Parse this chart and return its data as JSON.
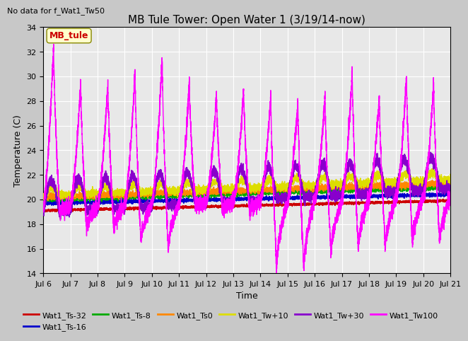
{
  "title": "MB Tule Tower: Open Water 1 (3/19/14-now)",
  "no_data_text": "No data for f_Wat1_Tw50",
  "xlabel": "Time",
  "ylabel": "Temperature (C)",
  "ylim": [
    14,
    34
  ],
  "x_tick_labels": [
    "Jul 6",
    "Jul 7",
    "Jul 8",
    "Jul 9",
    "Jul 10",
    "Jul 11",
    "Jul 12",
    "Jul 13",
    "Jul 14",
    "Jul 15",
    "Jul 16",
    "Jul 17",
    "Jul 18",
    "Jul 19",
    "Jul 20",
    "Jul 21"
  ],
  "legend_box_label": "MB_tule",
  "fig_bg_color": "#c8c8c8",
  "plot_bg_color": "#e8e8e8",
  "series_colors": {
    "Ts32": "#cc0000",
    "Ts16": "#0000cc",
    "Ts8": "#00aa00",
    "Ts0": "#ff8800",
    "Tw10": "#dddd00",
    "Tw30": "#8800cc",
    "Tw100": "#ff00ff"
  },
  "legend_labels": [
    "Wat1_Ts-32",
    "Wat1_Ts-16",
    "Wat1_Ts-8",
    "Wat1_Ts0",
    "Wat1_Tw+10",
    "Wat1_Tw+30",
    "Wat1_Tw100"
  ]
}
